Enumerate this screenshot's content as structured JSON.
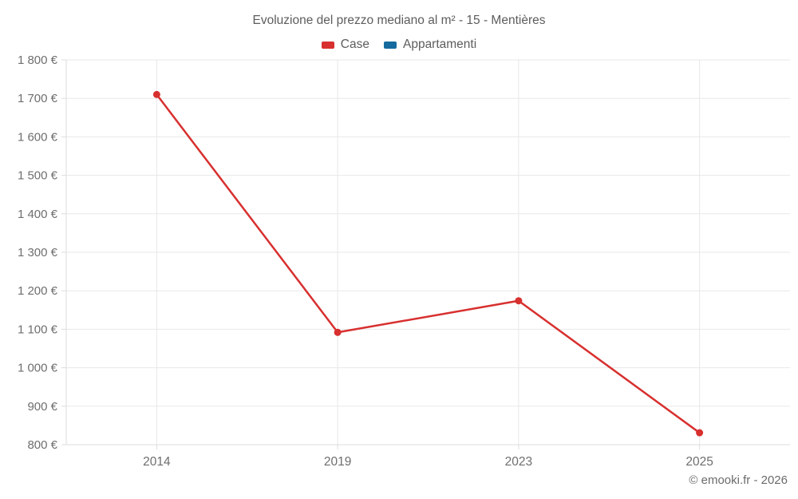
{
  "title": "Evoluzione del prezzo mediano al m² - 15 - Mentières",
  "footer": "© emooki.fr - 2026",
  "colors": {
    "case_red": "#d7302f",
    "appartamenti_blue": "#156a9e",
    "grid": "#e8e8e8",
    "axis": "#dcdcdc",
    "text": "#6e6e6e",
    "title_text": "#5d5d5d",
    "background": "#ffffff"
  },
  "chart_data": {
    "type": "line",
    "title": "Evoluzione del prezzo mediano al m² - 15 - Mentières",
    "categories": [
      "2014",
      "2019",
      "2023",
      "2025"
    ],
    "series": [
      {
        "name": "Case",
        "color": "#d7302f",
        "values": [
          1710,
          1092,
          1174,
          831
        ]
      },
      {
        "name": "Appartamenti",
        "color": "#156a9e",
        "values": []
      }
    ],
    "xlabel": "",
    "ylabel": "",
    "ylim": [
      800,
      1800
    ],
    "y_tick_step": 100,
    "y_ticks": [
      {
        "value": 800,
        "label": "800 €"
      },
      {
        "value": 900,
        "label": "900 €"
      },
      {
        "value": 1000,
        "label": "1 000 €"
      },
      {
        "value": 1100,
        "label": "1 100 €"
      },
      {
        "value": 1200,
        "label": "1 200 €"
      },
      {
        "value": 1300,
        "label": "1 300 €"
      },
      {
        "value": 1400,
        "label": "1 400 €"
      },
      {
        "value": 1500,
        "label": "1 500 €"
      },
      {
        "value": 1600,
        "label": "1 600 €"
      },
      {
        "value": 1700,
        "label": "1 700 €"
      },
      {
        "value": 1800,
        "label": "1 800 €"
      }
    ],
    "grid": true,
    "legend_position": "top"
  }
}
